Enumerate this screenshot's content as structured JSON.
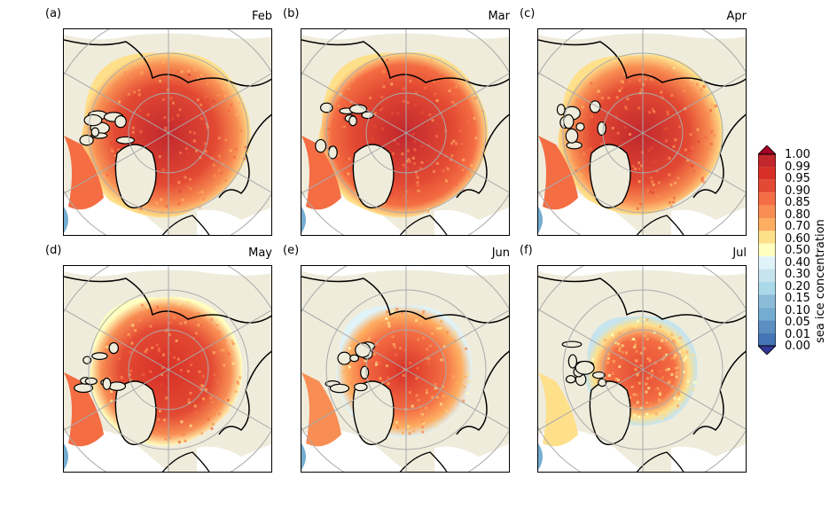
{
  "panels": [
    {
      "letter": "(a)",
      "month": "Feb",
      "extent": 1.0,
      "edge": 0.9
    },
    {
      "letter": "(b)",
      "month": "Mar",
      "extent": 1.0,
      "edge": 0.92
    },
    {
      "letter": "(c)",
      "month": "Apr",
      "extent": 0.97,
      "edge": 0.88
    },
    {
      "letter": "(d)",
      "month": "May",
      "extent": 0.9,
      "edge": 0.8
    },
    {
      "letter": "(e)",
      "month": "Jun",
      "extent": 0.8,
      "edge": 0.65
    },
    {
      "letter": "(f)",
      "month": "Jul",
      "extent": 0.66,
      "edge": 0.5
    }
  ],
  "colorbar": {
    "label": "sea ice concentration",
    "ticks": [
      "1.00",
      "0.99",
      "0.95",
      "0.90",
      "0.85",
      "0.80",
      "0.70",
      "0.60",
      "0.50",
      "0.40",
      "0.30",
      "0.20",
      "0.15",
      "0.10",
      "0.05",
      "0.01",
      "0.00"
    ],
    "colors": [
      "#a50026",
      "#c1272d",
      "#d73027",
      "#e34a33",
      "#f46d43",
      "#f88e53",
      "#fdae61",
      "#fee08b",
      "#ffffbf",
      "#e0f3f8",
      "#c6e4ee",
      "#abd9e9",
      "#8cbbd8",
      "#74add1",
      "#5b8fc2",
      "#4575b4",
      "#313695"
    ]
  },
  "land_color": "#efecdc",
  "ocean_color": "#ffffff"
}
